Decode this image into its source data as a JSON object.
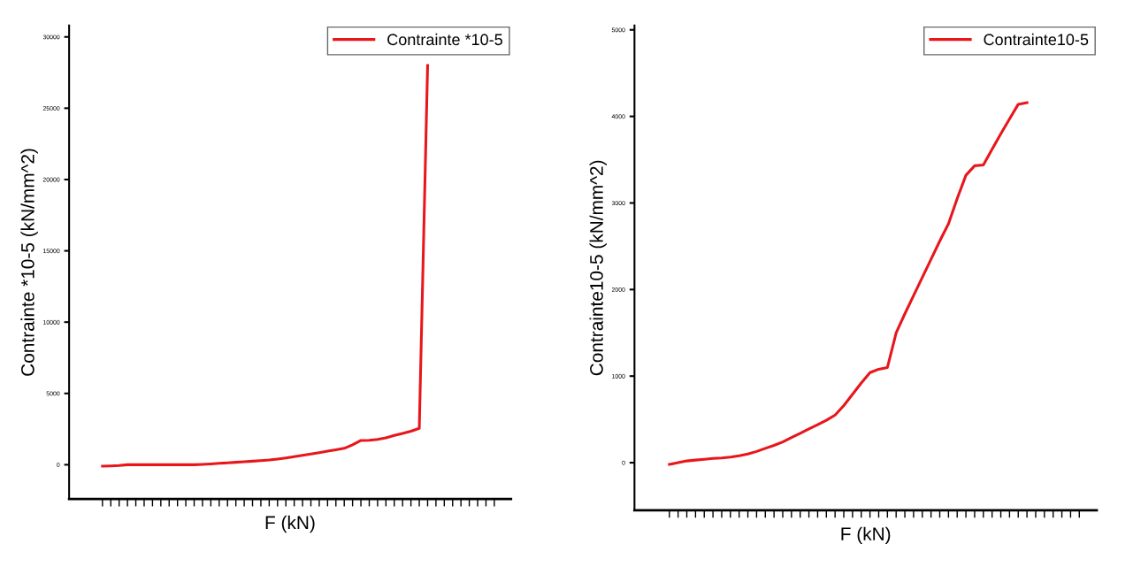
{
  "chart_data": [
    {
      "type": "line",
      "xlabel": "F (kN)",
      "ylabel": "Contrainte *10-5 (kN/mm^2)",
      "legend": "top right",
      "grid": false,
      "categories": [
        null,
        null,
        null,
        null,
        null,
        null,
        null,
        null,
        null,
        null,
        null,
        null,
        null,
        null,
        null,
        null,
        null,
        null,
        null,
        null,
        null,
        null,
        null,
        null,
        null,
        null,
        null,
        null,
        null,
        null,
        null,
        null,
        null,
        null,
        null,
        null,
        null,
        null,
        null,
        null,
        null,
        null,
        null,
        null,
        null,
        null,
        null,
        null
      ],
      "ylim": [
        -2400,
        30800
      ],
      "yticks": [
        0,
        5000,
        10000,
        15000,
        20000,
        25000,
        30000
      ],
      "series": [
        {
          "name": "Contrainte *10-5",
          "color": "#e8161b",
          "values": [
            -100,
            -80,
            -50,
            0,
            0,
            0,
            0,
            0,
            0,
            0,
            0,
            0,
            30,
            60,
            100,
            130,
            170,
            210,
            250,
            290,
            330,
            400,
            480,
            570,
            660,
            760,
            850,
            950,
            1050,
            1150,
            1400,
            1700,
            1720,
            1780,
            1880,
            2050,
            2200,
            2350,
            2550,
            28000,
            null,
            null,
            null,
            null,
            null,
            null,
            null,
            null
          ]
        }
      ]
    },
    {
      "type": "line",
      "xlabel": "F (kN)",
      "ylabel": "Contrainte10-5 (kN/mm^2)",
      "legend": "top right",
      "grid": false,
      "categories": [
        null,
        null,
        null,
        null,
        null,
        null,
        null,
        null,
        null,
        null,
        null,
        null,
        null,
        null,
        null,
        null,
        null,
        null,
        null,
        null,
        null,
        null,
        null,
        null,
        null,
        null,
        null,
        null,
        null,
        null,
        null,
        null,
        null,
        null,
        null,
        null,
        null,
        null,
        null,
        null,
        null,
        null,
        null,
        null,
        null,
        null,
        null,
        null
      ],
      "ylim": [
        -550,
        5050
      ],
      "yticks": [
        0,
        1000,
        2000,
        3000,
        4000,
        5000
      ],
      "series": [
        {
          "name": "Contrainte10-5",
          "color": "#e8161b",
          "values": [
            -20,
            0,
            20,
            30,
            40,
            50,
            55,
            65,
            80,
            100,
            130,
            165,
            200,
            240,
            290,
            340,
            390,
            440,
            490,
            550,
            660,
            790,
            920,
            1040,
            1080,
            1100,
            1500,
            1720,
            1930,
            2140,
            2350,
            2560,
            2760,
            3050,
            3320,
            3430,
            3440,
            3620,
            3800,
            3970,
            4140,
            4160,
            null,
            null,
            null,
            null,
            null,
            null
          ]
        }
      ]
    }
  ]
}
